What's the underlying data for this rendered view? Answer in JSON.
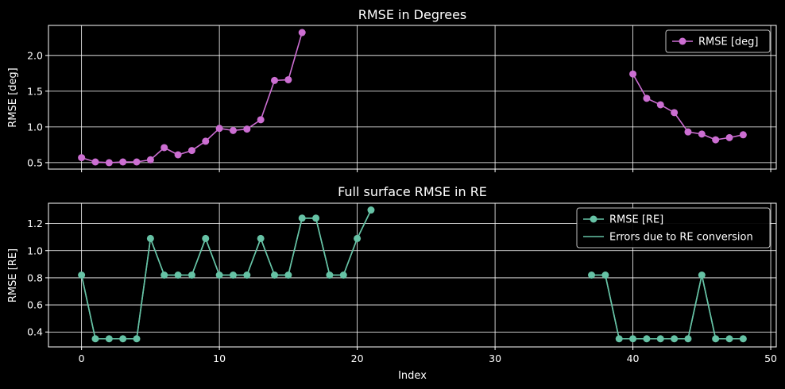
{
  "figure": {
    "background": "#000000"
  },
  "chart_data": [
    {
      "type": "line",
      "title": "RMSE in Degrees",
      "xlabel": "",
      "ylabel": "RMSE [deg]",
      "xlim": [
        -2.4,
        50.4
      ],
      "ylim": [
        0.41,
        2.42
      ],
      "xticks": [
        0,
        10,
        20,
        30,
        40,
        50
      ],
      "xtick_labels_visible": false,
      "yticks": [
        0.5,
        1.0,
        1.5,
        2.0
      ],
      "ytick_labels": [
        "0.5",
        "1.0",
        "1.5",
        "2.0"
      ],
      "grid": true,
      "legend_position": "top-right",
      "series": [
        {
          "name": "RMSE [deg]",
          "color": "#cc6ed2",
          "marker": "circle",
          "x": [
            0,
            1,
            2,
            3,
            4,
            5,
            6,
            7,
            8,
            9,
            10,
            11,
            12,
            13,
            14,
            15,
            16,
            40,
            41,
            42,
            43,
            44,
            45,
            46,
            47,
            48
          ],
          "y": [
            0.57,
            0.51,
            0.5,
            0.51,
            0.51,
            0.54,
            0.71,
            0.61,
            0.67,
            0.8,
            0.98,
            0.95,
            0.97,
            1.1,
            1.65,
            1.66,
            2.32,
            1.74,
            1.4,
            1.31,
            1.2,
            0.93,
            0.9,
            0.82,
            0.85,
            0.89
          ]
        }
      ]
    },
    {
      "type": "line",
      "title": "Full surface RMSE in RE",
      "xlabel": "Index",
      "ylabel": "RMSE [RE]",
      "xlim": [
        -2.4,
        50.4
      ],
      "ylim": [
        0.29,
        1.35
      ],
      "xticks": [
        0,
        10,
        20,
        30,
        40,
        50
      ],
      "xtick_labels": [
        "0",
        "10",
        "20",
        "30",
        "40",
        "50"
      ],
      "yticks": [
        0.4,
        0.6,
        0.8,
        1.0,
        1.2
      ],
      "ytick_labels": [
        "0.4",
        "0.6",
        "0.8",
        "1.0",
        "1.2"
      ],
      "grid": true,
      "legend_position": "top-right",
      "series": [
        {
          "name": "RMSE [RE]",
          "color": "#66c2a5",
          "marker": "circle",
          "x": [
            0,
            1,
            2,
            3,
            4,
            5,
            6,
            7,
            8,
            9,
            10,
            11,
            12,
            13,
            14,
            15,
            16,
            17,
            18,
            19,
            20,
            21,
            37,
            38,
            39,
            40,
            41,
            42,
            43,
            44,
            45,
            46,
            47,
            48
          ],
          "y": [
            0.82,
            0.35,
            0.35,
            0.35,
            0.35,
            1.09,
            0.82,
            0.82,
            0.82,
            1.09,
            0.82,
            0.82,
            0.82,
            1.09,
            0.82,
            0.82,
            1.24,
            1.24,
            0.82,
            0.82,
            1.09,
            1.3,
            0.82,
            0.82,
            0.35,
            0.35,
            0.35,
            0.35,
            0.35,
            0.35,
            0.82,
            0.35,
            0.35,
            0.35
          ]
        },
        {
          "name": "Errors due to RE conversion",
          "color": "#66c2a5",
          "marker": "none",
          "x": [
            0,
            1,
            2,
            3,
            4,
            5,
            6,
            7,
            8,
            9,
            10,
            11,
            12,
            13,
            14,
            15,
            16,
            17,
            18,
            19,
            20,
            21,
            37,
            38,
            39,
            40,
            41,
            42,
            43,
            44,
            45,
            46,
            47,
            48
          ],
          "y": [
            0.82,
            0.35,
            0.35,
            0.35,
            0.35,
            1.09,
            0.82,
            0.82,
            0.82,
            1.09,
            0.82,
            0.82,
            0.82,
            1.09,
            0.82,
            0.82,
            1.24,
            1.24,
            0.82,
            0.82,
            1.09,
            1.3,
            0.82,
            0.82,
            0.35,
            0.35,
            0.35,
            0.35,
            0.35,
            0.35,
            0.82,
            0.35,
            0.35,
            0.35
          ]
        }
      ]
    }
  ]
}
